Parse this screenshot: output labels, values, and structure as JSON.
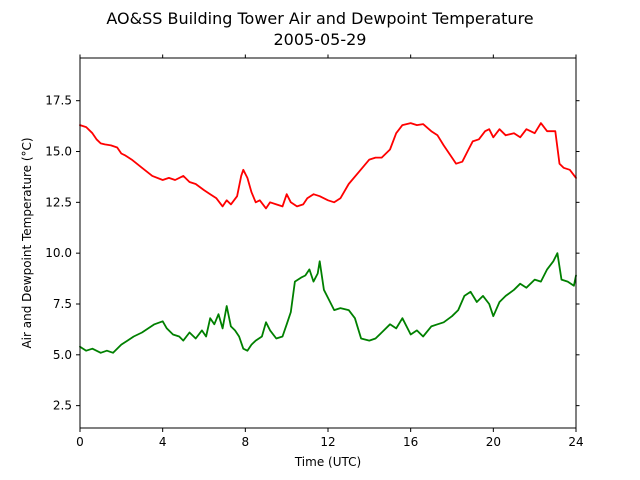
{
  "chart_data": {
    "type": "line",
    "title": "AO&SS Building Tower Air and Dewpoint Temperature",
    "subtitle": "2005-05-29",
    "xlabel": "Time (UTC)",
    "ylabel": "Air and Dewpoint Temperature (°C)",
    "xlim": [
      0,
      24
    ],
    "ylim": [
      1.4,
      19.6
    ],
    "xticks": [
      0,
      4,
      8,
      12,
      16,
      20,
      24
    ],
    "yticks": [
      2.5,
      5.0,
      7.5,
      10.0,
      12.5,
      15.0,
      17.5
    ],
    "ytick_labels": [
      "2.5",
      "5.0",
      "7.5",
      "10.0",
      "12.5",
      "15.0",
      "17.5"
    ],
    "grid": false,
    "series": [
      {
        "color": "#ff0000",
        "x": [
          0,
          0.3,
          0.6,
          0.8,
          1.0,
          1.2,
          1.5,
          1.8,
          2.0,
          2.2,
          2.5,
          3.0,
          3.5,
          4.0,
          4.3,
          4.6,
          5.0,
          5.3,
          5.6,
          6.0,
          6.3,
          6.6,
          6.9,
          7.1,
          7.3,
          7.6,
          7.8,
          7.9,
          8.1,
          8.3,
          8.5,
          8.7,
          9.0,
          9.2,
          9.5,
          9.8,
          10.0,
          10.2,
          10.5,
          10.8,
          11.0,
          11.3,
          11.6,
          12.0,
          12.3,
          12.6,
          13.0,
          13.5,
          14.0,
          14.3,
          14.6,
          15.0,
          15.3,
          15.6,
          16.0,
          16.3,
          16.6,
          17.0,
          17.3,
          17.6,
          18.0,
          18.2,
          18.5,
          18.8,
          19.0,
          19.3,
          19.6,
          19.8,
          20.0,
          20.3,
          20.6,
          21.0,
          21.3,
          21.6,
          22.0,
          22.3,
          22.6,
          23.0,
          23.2,
          23.4,
          23.7,
          24.0
        ],
        "values": [
          16.3,
          16.2,
          15.9,
          15.6,
          15.4,
          15.35,
          15.3,
          15.2,
          14.9,
          14.8,
          14.6,
          14.2,
          13.8,
          13.6,
          13.7,
          13.6,
          13.8,
          13.5,
          13.4,
          13.1,
          12.9,
          12.7,
          12.3,
          12.6,
          12.4,
          12.8,
          13.8,
          14.1,
          13.7,
          13.0,
          12.5,
          12.6,
          12.2,
          12.5,
          12.4,
          12.3,
          12.9,
          12.5,
          12.3,
          12.4,
          12.7,
          12.9,
          12.8,
          12.6,
          12.5,
          12.7,
          13.4,
          14.0,
          14.6,
          14.7,
          14.7,
          15.1,
          15.9,
          16.3,
          16.4,
          16.3,
          16.35,
          16.0,
          15.8,
          15.3,
          14.7,
          14.4,
          14.5,
          15.1,
          15.5,
          15.6,
          16.0,
          16.1,
          15.7,
          16.1,
          15.8,
          15.9,
          15.7,
          16.1,
          15.9,
          16.4,
          16.0,
          16.0,
          14.4,
          14.2,
          14.1,
          13.7
        ]
      },
      {
        "color": "#008000",
        "x": [
          0,
          0.3,
          0.6,
          1.0,
          1.3,
          1.6,
          2.0,
          2.3,
          2.6,
          3.0,
          3.3,
          3.6,
          4.0,
          4.2,
          4.5,
          4.8,
          5.0,
          5.3,
          5.6,
          5.9,
          6.1,
          6.3,
          6.5,
          6.7,
          6.9,
          7.1,
          7.3,
          7.5,
          7.7,
          7.9,
          8.1,
          8.3,
          8.5,
          8.8,
          9.0,
          9.2,
          9.5,
          9.8,
          10.0,
          10.2,
          10.4,
          10.7,
          10.9,
          11.1,
          11.3,
          11.5,
          11.6,
          11.8,
          12.0,
          12.3,
          12.6,
          13.0,
          13.3,
          13.6,
          14.0,
          14.3,
          14.6,
          15.0,
          15.3,
          15.6,
          16.0,
          16.3,
          16.6,
          17.0,
          17.3,
          17.6,
          18.0,
          18.3,
          18.6,
          18.9,
          19.2,
          19.5,
          19.8,
          20.0,
          20.3,
          20.6,
          21.0,
          21.3,
          21.6,
          22.0,
          22.3,
          22.6,
          22.9,
          23.1,
          23.3,
          23.6,
          23.9,
          24.0
        ],
        "values": [
          5.4,
          5.2,
          5.3,
          5.1,
          5.2,
          5.1,
          5.5,
          5.7,
          5.9,
          6.1,
          6.3,
          6.5,
          6.65,
          6.3,
          6.0,
          5.9,
          5.7,
          6.1,
          5.8,
          6.2,
          5.9,
          6.8,
          6.5,
          7.0,
          6.3,
          7.4,
          6.4,
          6.2,
          5.9,
          5.3,
          5.2,
          5.5,
          5.7,
          5.9,
          6.6,
          6.2,
          5.8,
          5.9,
          6.5,
          7.1,
          8.6,
          8.8,
          8.9,
          9.2,
          8.6,
          9.0,
          9.6,
          8.2,
          7.8,
          7.2,
          7.3,
          7.2,
          6.8,
          5.8,
          5.7,
          5.8,
          6.1,
          6.5,
          6.3,
          6.8,
          6.0,
          6.2,
          5.9,
          6.4,
          6.5,
          6.6,
          6.9,
          7.2,
          7.9,
          8.1,
          7.6,
          7.9,
          7.5,
          6.9,
          7.6,
          7.9,
          8.2,
          8.5,
          8.3,
          8.7,
          8.6,
          9.2,
          9.6,
          10.0,
          8.7,
          8.6,
          8.4,
          8.9
        ]
      }
    ]
  }
}
